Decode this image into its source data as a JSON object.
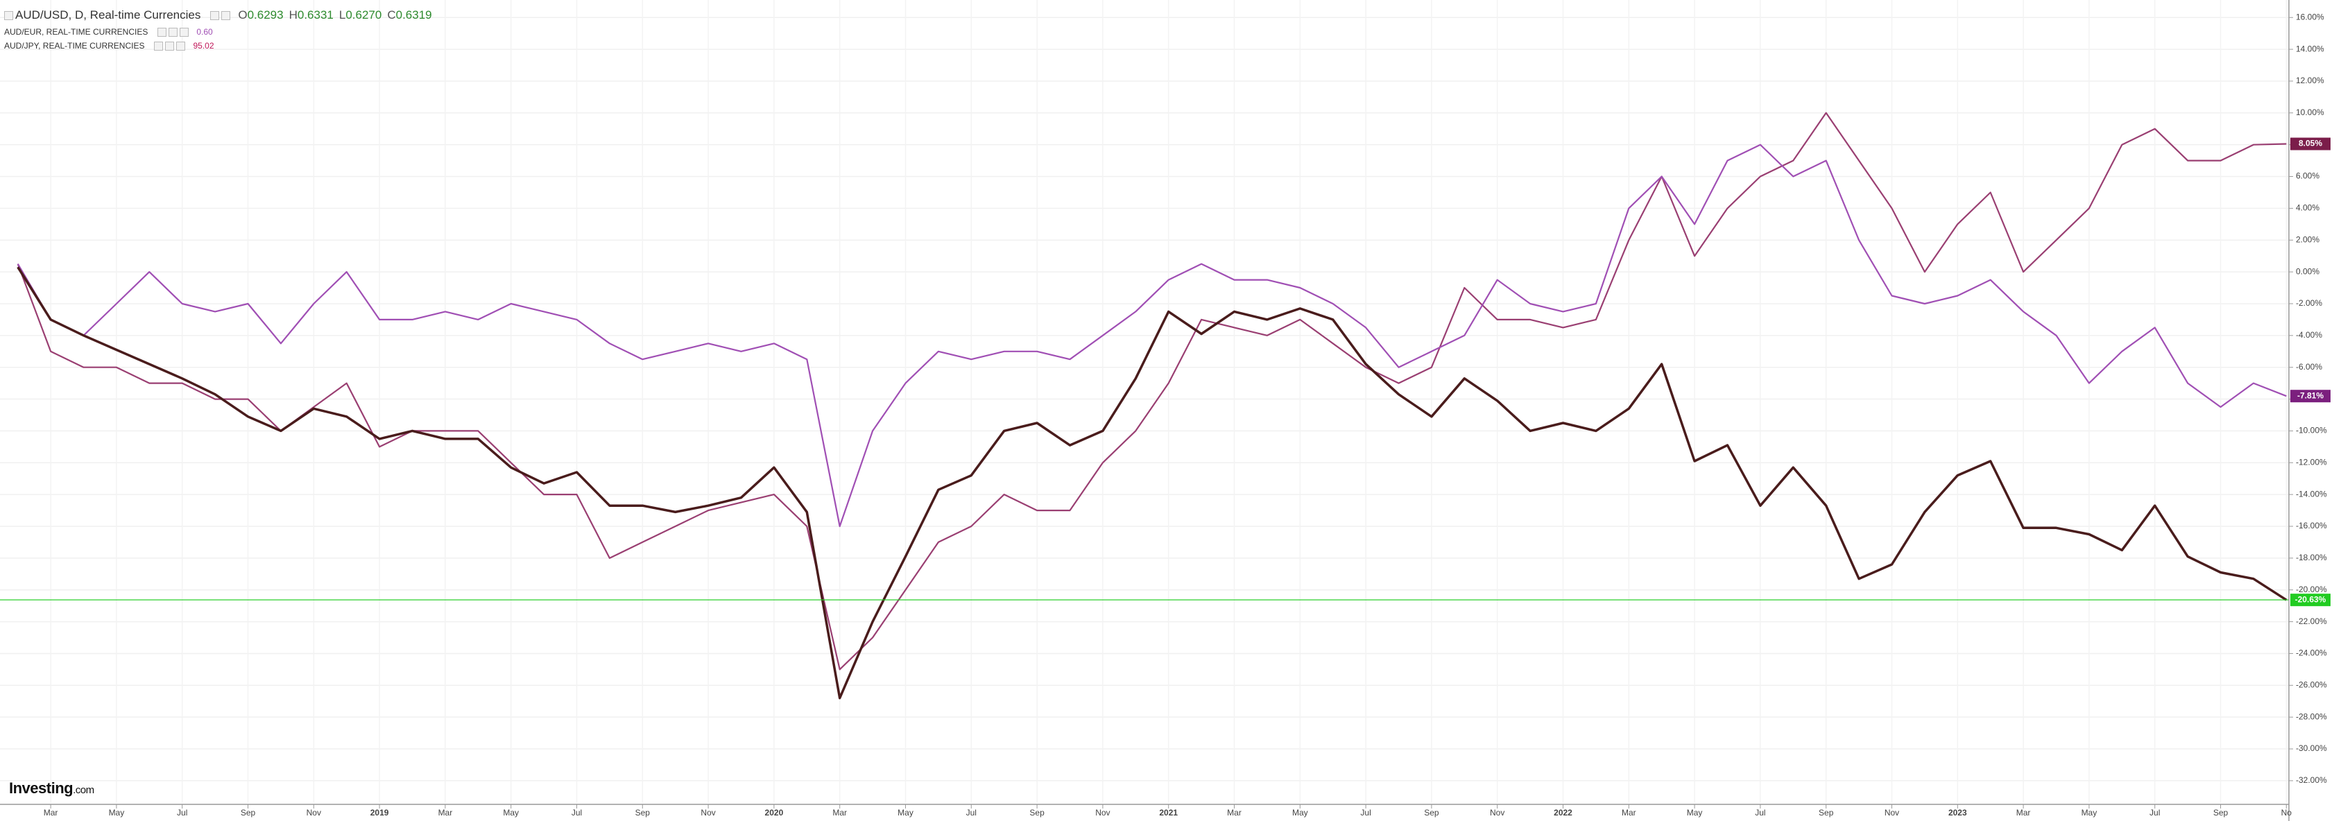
{
  "chart_data": {
    "type": "line",
    "title": "AUD/USD, D, Real-time Currencies",
    "ohlc": [
      {
        "label": "O",
        "value": "0.6293"
      },
      {
        "label": "H",
        "value": "0.6331"
      },
      {
        "label": "L",
        "value": "0.6270"
      },
      {
        "label": "C",
        "value": "0.6319"
      }
    ],
    "logo": "Investing",
    "logo_suffix": ".com",
    "categories": [
      null,
      "Mar",
      null,
      "May",
      null,
      "Jul",
      null,
      "Sep",
      null,
      "Nov",
      null,
      "2019",
      null,
      "Mar",
      null,
      "May",
      null,
      "Jul",
      null,
      "Sep",
      null,
      "Nov",
      null,
      "2020",
      null,
      "Mar",
      null,
      "May",
      null,
      "Jul",
      null,
      "Sep",
      null,
      "Nov",
      null,
      "2021",
      null,
      "Mar",
      null,
      "May",
      null,
      "Jul",
      null,
      "Sep",
      null,
      "Nov",
      null,
      "2022",
      null,
      "Mar",
      null,
      "May",
      null,
      "Jul",
      null,
      "Sep",
      null,
      "Nov",
      null,
      "2023",
      null,
      "Mar",
      null,
      "May",
      null,
      "Jul",
      null,
      "Sep",
      null,
      "No"
    ],
    "series": [
      {
        "name": "AUD/USD, D, Real-time Currencies",
        "color": "#4a1c1c",
        "tag_color": "#22cc22",
        "values": [
          0.3,
          -3,
          -4,
          -4.9,
          -5.8,
          -6.7,
          -7.7,
          -9.1,
          -10,
          -8.6,
          -9.1,
          -10.5,
          -10,
          -10.5,
          -10.5,
          -12.3,
          -13.3,
          -12.6,
          -14.7,
          -14.7,
          -15.1,
          -14.7,
          -14.2,
          -12.3,
          -15.1,
          -26.8,
          -22,
          -17.9,
          -13.7,
          -12.8,
          -10,
          -9.5,
          -10.9,
          -10,
          -6.7,
          -2.5,
          -3.9,
          -2.5,
          -3,
          -2.3,
          -3,
          -5.8,
          -7.7,
          -9.1,
          -6.7,
          -8.1,
          -10,
          -9.5,
          -10,
          -8.6,
          -5.8,
          -11.9,
          -10.9,
          -14.7,
          -12.3,
          -14.7,
          -19.3,
          -18.4,
          -15.1,
          -12.8,
          -11.9,
          -16.1,
          -16.1,
          -16.5,
          -17.5,
          -14.7,
          -17.9,
          -18.9,
          -19.3,
          -20.63
        ],
        "value_labels": [
          null,
          null,
          null,
          null,
          null,
          null,
          null,
          null,
          null,
          null,
          null,
          null,
          null,
          null,
          null,
          null,
          null,
          null,
          null,
          null,
          null,
          null,
          null,
          null,
          null,
          null,
          null,
          null,
          null,
          null,
          null,
          null,
          null,
          null,
          null,
          null,
          null,
          null,
          null,
          null,
          null,
          null,
          null,
          null,
          null,
          null,
          null,
          null,
          null,
          null,
          null,
          null,
          null,
          null,
          null,
          null,
          null,
          null,
          null,
          null,
          null,
          null,
          null,
          null,
          null,
          null,
          null,
          null,
          null,
          "-20.63%"
        ]
      },
      {
        "name": "AUD/EUR, REAL-TIME CURRENCIES",
        "color": "#a04fb4",
        "tag_color": "#7b1f7e",
        "last_quote": "0.60",
        "values": [
          0.5,
          -3,
          -4,
          -2,
          0,
          -2,
          -2.5,
          -2,
          -4.5,
          -2,
          0,
          -3,
          -3,
          -2.5,
          -3,
          -2,
          -2.5,
          -3,
          -4.5,
          -5.5,
          -5,
          -4.5,
          -5,
          -4.5,
          -5.5,
          -16,
          -10,
          -7,
          -5,
          -5.5,
          -5,
          -5,
          -5.5,
          -4,
          -2.5,
          -0.5,
          0.5,
          -0.5,
          -0.5,
          -1,
          -2,
          -3.5,
          -6,
          -5,
          -4,
          -0.5,
          -2,
          -2.5,
          -2,
          4,
          6,
          3,
          7,
          8,
          6,
          7,
          2,
          -1.5,
          -2,
          -1.5,
          -0.5,
          -2.5,
          -4,
          -7,
          -5,
          -3.5,
          -7,
          -8.5,
          -7,
          -7.81
        ],
        "value_labels": [
          null,
          null,
          null,
          null,
          null,
          null,
          null,
          null,
          null,
          null,
          null,
          null,
          null,
          null,
          null,
          null,
          null,
          null,
          null,
          null,
          null,
          null,
          null,
          null,
          null,
          null,
          null,
          null,
          null,
          null,
          null,
          null,
          null,
          null,
          null,
          null,
          null,
          null,
          null,
          null,
          null,
          null,
          null,
          null,
          null,
          null,
          null,
          null,
          null,
          null,
          null,
          null,
          null,
          null,
          null,
          null,
          null,
          null,
          null,
          null,
          null,
          null,
          null,
          null,
          null,
          null,
          null,
          null,
          null,
          "-7.81%"
        ]
      },
      {
        "name": "AUD/JPY, REAL-TIME CURRENCIES",
        "color": "#9a3f72",
        "tag_color": "#7b1d4a",
        "last_quote": "95.02",
        "values": [
          0.5,
          -5,
          -6,
          -6,
          -7,
          -7,
          -8,
          -8,
          -10,
          -8.5,
          -7,
          -11,
          -10,
          -10,
          -10,
          -12,
          -14,
          -14,
          -18,
          -17,
          -16,
          -15,
          -14.5,
          -14,
          -16,
          -25,
          -23,
          -20,
          -17,
          -16,
          -14,
          -15,
          -15,
          -12,
          -10,
          -7,
          -3,
          -3.5,
          -4,
          -3,
          -4.5,
          -6,
          -7,
          -6,
          -1,
          -3,
          -3,
          -3.5,
          -3,
          2,
          6,
          1,
          4,
          6,
          7,
          10,
          7,
          4,
          0,
          3,
          5,
          0,
          2,
          4,
          8,
          9,
          7,
          7,
          8,
          8.05
        ],
        "value_labels": [
          null,
          null,
          null,
          null,
          null,
          null,
          null,
          null,
          null,
          null,
          null,
          null,
          null,
          null,
          null,
          null,
          null,
          null,
          null,
          null,
          null,
          null,
          null,
          null,
          null,
          null,
          null,
          null,
          null,
          null,
          null,
          null,
          null,
          null,
          null,
          null,
          null,
          null,
          null,
          null,
          null,
          null,
          null,
          null,
          null,
          null,
          null,
          null,
          null,
          null,
          null,
          null,
          null,
          null,
          null,
          null,
          null,
          null,
          null,
          null,
          null,
          null,
          null,
          null,
          null,
          null,
          null,
          null,
          null,
          "8.05%"
        ]
      }
    ],
    "ylim": [
      -33.4,
      17.1
    ],
    "yticks": [
      {
        "value": 16,
        "label": "16.00%"
      },
      {
        "value": 14,
        "label": "14.00%"
      },
      {
        "value": 12,
        "label": "12.00%"
      },
      {
        "value": 10,
        "label": "10.00%"
      },
      {
        "value": 8,
        "label": "8.00%"
      },
      {
        "value": 6,
        "label": "6.00%"
      },
      {
        "value": 4,
        "label": "4.00%"
      },
      {
        "value": 2,
        "label": "2.00%"
      },
      {
        "value": 0,
        "label": "0.00%"
      },
      {
        "value": -2,
        "label": "-2.00%"
      },
      {
        "value": -4,
        "label": "-4.00%"
      },
      {
        "value": -6,
        "label": "-6.00%"
      },
      {
        "value": -8,
        "label": "-8.00%"
      },
      {
        "value": -10,
        "label": "-10.00%"
      },
      {
        "value": -12,
        "label": "-12.00%"
      },
      {
        "value": -14,
        "label": "-14.00%"
      },
      {
        "value": -16,
        "label": "-16.00%"
      },
      {
        "value": -18,
        "label": "-18.00%"
      },
      {
        "value": -20,
        "label": "-20.00%"
      },
      {
        "value": -22,
        "label": "-22.00%"
      },
      {
        "value": -24,
        "label": "-24.00%"
      },
      {
        "value": -26,
        "label": "-26.00%"
      },
      {
        "value": -28,
        "label": "-28.00%"
      },
      {
        "value": -30,
        "label": "-30.00%"
      },
      {
        "value": -32,
        "label": "-32.00%"
      }
    ],
    "grid": true
  }
}
